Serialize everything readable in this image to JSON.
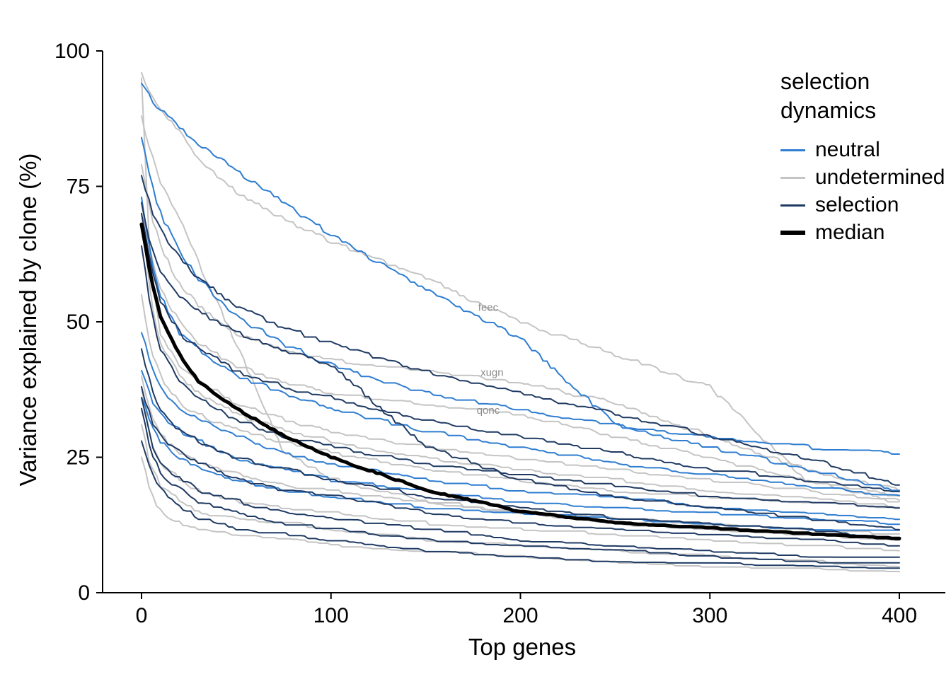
{
  "chart_data": {
    "type": "line",
    "title": "",
    "xlabel": "Top genes",
    "ylabel": "Variance explained by clone (%)",
    "xlim": [
      0,
      400
    ],
    "ylim": [
      0,
      100
    ],
    "xticks": [
      0,
      100,
      200,
      300,
      400
    ],
    "yticks": [
      0,
      25,
      50,
      75,
      100
    ],
    "grid": "off",
    "legend": {
      "title": "selection dynamics",
      "position": "top-right",
      "items": [
        {
          "label": "neutral",
          "group": "neutral",
          "color": "#2e7dd1",
          "thickness": 3
        },
        {
          "label": "undetermined",
          "group": "undetermined",
          "color": "#c4c4c4",
          "thickness": 3
        },
        {
          "label": "selection",
          "group": "selection",
          "color": "#1f3a63",
          "thickness": 3
        },
        {
          "label": "median",
          "group": "median",
          "color": "#000000",
          "thickness": 6
        }
      ]
    },
    "colors": {
      "neutral": "#2e7dd1",
      "undetermined": "#c4c4c4",
      "selection": "#1f3a63",
      "median": "#000000"
    },
    "control_x": [
      0,
      5,
      10,
      20,
      30,
      50,
      75,
      100,
      150,
      200,
      250,
      300,
      350,
      400
    ],
    "series": [
      {
        "group": "undetermined",
        "values": [
          96,
          92,
          89,
          85,
          80,
          74,
          69,
          65,
          58,
          50,
          44,
          38,
          21,
          18
        ]
      },
      {
        "group": "undetermined",
        "values": [
          79,
          70,
          64,
          57,
          53,
          48,
          45,
          43,
          41,
          39,
          35,
          29,
          23,
          19
        ]
      },
      {
        "group": "undetermined",
        "values": [
          72,
          62,
          56,
          50,
          46,
          42,
          39,
          37,
          35,
          33,
          29,
          25,
          21,
          17
        ]
      },
      {
        "group": "undetermined",
        "values": [
          95,
          58,
          48,
          42,
          39,
          35,
          32,
          30,
          27,
          25,
          23,
          21,
          19,
          17
        ]
      },
      {
        "group": "undetermined",
        "values": [
          70,
          54,
          46,
          40,
          37,
          33,
          30,
          28,
          25,
          23,
          21,
          19,
          18,
          16
        ]
      },
      {
        "group": "undetermined",
        "values": [
          55,
          45,
          40,
          35,
          33,
          30,
          28,
          26,
          23,
          21,
          19,
          18,
          17,
          16
        ]
      },
      {
        "group": "undetermined",
        "values": [
          40,
          33,
          29,
          26,
          24,
          22,
          20,
          19,
          17,
          15,
          14,
          13,
          12,
          11
        ]
      },
      {
        "group": "undetermined",
        "values": [
          38,
          28,
          24,
          21,
          19,
          17,
          16,
          15,
          13,
          12,
          11,
          10,
          9,
          8
        ]
      },
      {
        "group": "undetermined",
        "values": [
          25,
          18,
          15,
          13,
          12,
          11,
          10,
          9,
          8,
          7,
          6,
          5,
          5,
          4
        ]
      },
      {
        "group": "undetermined",
        "values": [
          31,
          23,
          20,
          17,
          15,
          14,
          13,
          12,
          10,
          9,
          8,
          7,
          6,
          5
        ]
      },
      {
        "group": "undetermined",
        "values": [
          88,
          81,
          76,
          69,
          61,
          46,
          26,
          21,
          17,
          15,
          13,
          12,
          11,
          10
        ]
      },
      {
        "group": "neutral",
        "values": [
          94,
          91,
          89,
          86,
          83,
          78,
          72,
          66,
          56,
          47,
          31,
          29,
          27,
          26
        ]
      },
      {
        "group": "neutral",
        "values": [
          84,
          76,
          70,
          63,
          58,
          51,
          46,
          42,
          37,
          34,
          31,
          27,
          23,
          19
        ]
      },
      {
        "group": "neutral",
        "values": [
          73,
          62,
          55,
          48,
          45,
          40,
          37,
          34,
          30,
          27,
          24,
          22,
          20,
          18
        ]
      },
      {
        "group": "neutral",
        "values": [
          48,
          42,
          38,
          34,
          32,
          29,
          26,
          24,
          21,
          19,
          18,
          16,
          15,
          14
        ]
      },
      {
        "group": "neutral",
        "values": [
          41,
          36,
          33,
          30,
          28,
          25,
          23,
          21,
          19,
          17,
          16,
          15,
          14,
          13
        ]
      },
      {
        "group": "neutral",
        "values": [
          36,
          31,
          28,
          25,
          23,
          21,
          19,
          18,
          16,
          15,
          14,
          13,
          12,
          12
        ]
      },
      {
        "group": "selection",
        "values": [
          77,
          71,
          67,
          62,
          58,
          53,
          49,
          46,
          41,
          37,
          33,
          29,
          25,
          20
        ]
      },
      {
        "group": "selection",
        "values": [
          72,
          64,
          59,
          55,
          52,
          48,
          45,
          42,
          27,
          21,
          18,
          16,
          14,
          12
        ]
      },
      {
        "group": "selection",
        "values": [
          70,
          60,
          54,
          48,
          45,
          41,
          38,
          36,
          32,
          29,
          26,
          23,
          21,
          19
        ]
      },
      {
        "group": "selection",
        "values": [
          64,
          52,
          45,
          39,
          36,
          32,
          29,
          27,
          24,
          22,
          20,
          18,
          17,
          16
        ]
      },
      {
        "group": "selection",
        "values": [
          45,
          38,
          34,
          30,
          28,
          25,
          23,
          21,
          18,
          16,
          14,
          13,
          12,
          10
        ]
      },
      {
        "group": "selection",
        "values": [
          38,
          32,
          29,
          26,
          24,
          21,
          19,
          18,
          15,
          13,
          12,
          11,
          10,
          9
        ]
      },
      {
        "group": "selection",
        "values": [
          36,
          28,
          24,
          21,
          19,
          17,
          15,
          14,
          12,
          10,
          9,
          8,
          7,
          7
        ]
      },
      {
        "group": "selection",
        "values": [
          34,
          26,
          22,
          19,
          17,
          15,
          13,
          12,
          10,
          9,
          8,
          7,
          6,
          6
        ]
      },
      {
        "group": "selection",
        "values": [
          28,
          22,
          19,
          16,
          14,
          12,
          11,
          10,
          8,
          7,
          6,
          6,
          5,
          5
        ]
      },
      {
        "group": "median",
        "values": [
          68,
          58,
          51,
          44,
          39,
          34,
          29,
          25,
          19,
          15,
          13,
          12,
          11,
          10
        ]
      }
    ],
    "annotations": [
      {
        "label": "feec",
        "x": 183,
        "y": 52,
        "color": "#8c8c8c"
      },
      {
        "label": "xugn",
        "x": 185,
        "y": 40,
        "color": "#8c8c8c"
      },
      {
        "label": "qonc",
        "x": 183,
        "y": 33,
        "color": "#8c8c8c"
      }
    ]
  }
}
